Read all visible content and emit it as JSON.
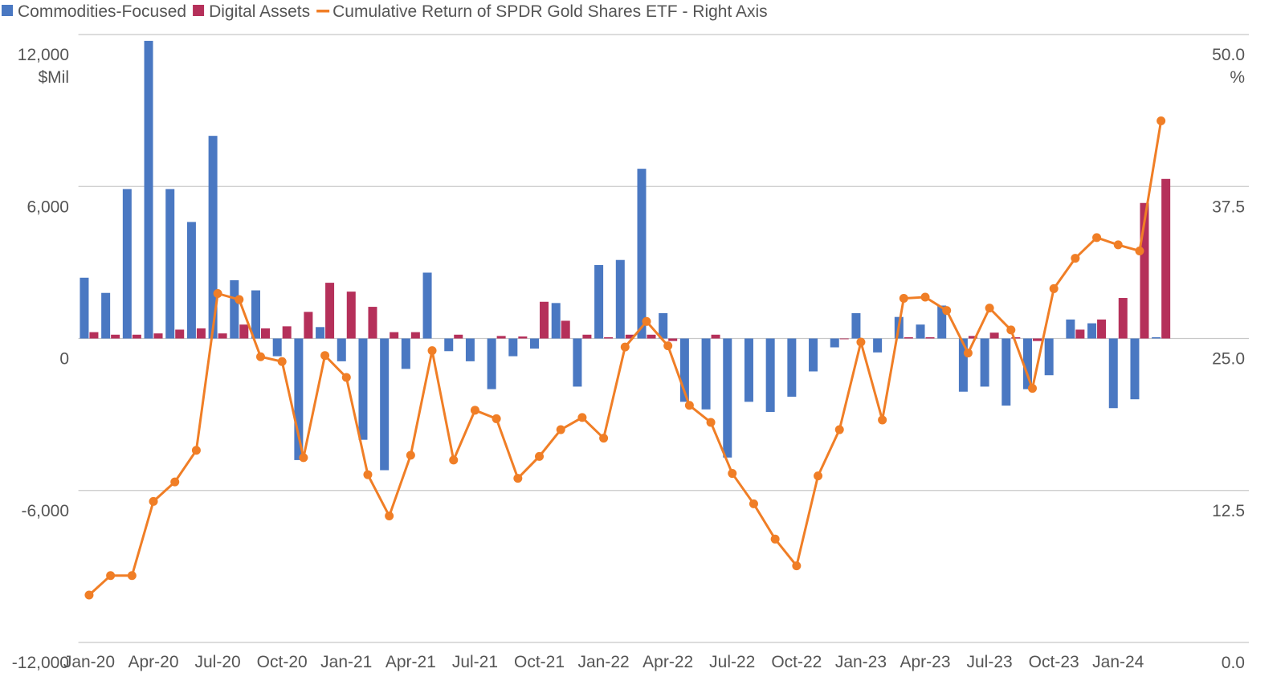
{
  "chart_data": {
    "type": "bar",
    "categories": [
      "Jan-20",
      null,
      null,
      "Apr-20",
      null,
      null,
      "Jul-20",
      null,
      null,
      "Oct-20",
      null,
      null,
      "Jan-21",
      null,
      null,
      "Apr-21",
      null,
      null,
      "Jul-21",
      null,
      null,
      "Oct-21",
      null,
      null,
      "Jan-22",
      null,
      null,
      "Apr-22",
      null,
      null,
      "Jul-22",
      null,
      null,
      "Oct-22",
      null,
      null,
      "Jan-23",
      null,
      null,
      "Apr-23",
      null,
      null,
      "Jul-23",
      null,
      null,
      "Oct-23",
      null,
      null,
      "Jan-24",
      null,
      null
    ],
    "series": [
      {
        "name": "Commodities-Focused",
        "color": "#4a78c2",
        "type": "bar",
        "values": [
          2400,
          1800,
          5900,
          11750,
          5900,
          4600,
          8000,
          2300,
          1900,
          -700,
          -4800,
          450,
          -900,
          -4000,
          -5200,
          -1200,
          2600,
          -500,
          -900,
          -2000,
          -700,
          -400,
          1400,
          -1900,
          2900,
          3100,
          6700,
          1000,
          -2500,
          -2800,
          -4700,
          -2500,
          -2900,
          -2300,
          -1300,
          -350,
          1000,
          -550,
          850,
          550,
          1300,
          -2100,
          -1900,
          -2650,
          -2000,
          -1450,
          750,
          600,
          -2750,
          -2400,
          50
        ]
      },
      {
        "name": "Digital Assets",
        "color": "#b5305a",
        "type": "bar",
        "values": [
          250,
          150,
          150,
          200,
          350,
          400,
          200,
          550,
          400,
          480,
          1050,
          2200,
          1850,
          1250,
          250,
          250,
          0,
          150,
          0,
          100,
          80,
          1450,
          700,
          150,
          50,
          150,
          150,
          -100,
          0,
          150,
          0,
          0,
          0,
          0,
          0,
          -30,
          0,
          0,
          50,
          50,
          0,
          100,
          230,
          50,
          -100,
          0,
          350,
          750,
          1600,
          5350,
          6300
        ]
      },
      {
        "name": "Cumulative Return of SPDR Gold Shares ETF - Right Axis",
        "color": "#f07e26",
        "type": "line",
        "axis": "y2",
        "values": [
          3.9,
          5.5,
          5.5,
          11.6,
          13.2,
          15.8,
          28.7,
          28.2,
          23.5,
          23.1,
          15.2,
          23.6,
          21.8,
          13.8,
          10.4,
          15.4,
          24.0,
          15.0,
          19.1,
          18.4,
          13.5,
          15.3,
          17.5,
          18.5,
          16.8,
          24.3,
          26.4,
          24.4,
          19.5,
          18.1,
          13.9,
          11.4,
          8.5,
          6.3,
          13.7,
          17.5,
          24.7,
          18.3,
          28.3,
          28.4,
          27.3,
          23.8,
          27.5,
          25.7,
          20.9,
          29.1,
          31.6,
          33.3,
          32.7,
          32.2,
          42.9
        ]
      }
    ],
    "y_unit": "$Mil",
    "y2_unit": "%",
    "ylim": [
      -12000,
      12000
    ],
    "yticks": [
      {
        "value": -12000,
        "label": "-12,000"
      },
      {
        "value": -6000,
        "label": "-6,000"
      },
      0,
      {
        "value": 6000,
        "label": "6,000"
      },
      {
        "value": 12000,
        "label": "12,000"
      }
    ],
    "y2lim": [
      0,
      50
    ],
    "y2ticks": [
      {
        "value": 0,
        "label": "0.0"
      },
      12.5,
      {
        "value": 25,
        "label": "25.0"
      },
      37.5,
      {
        "value": 50,
        "label": "50.0"
      }
    ],
    "grid": true,
    "legend": "top-left"
  }
}
